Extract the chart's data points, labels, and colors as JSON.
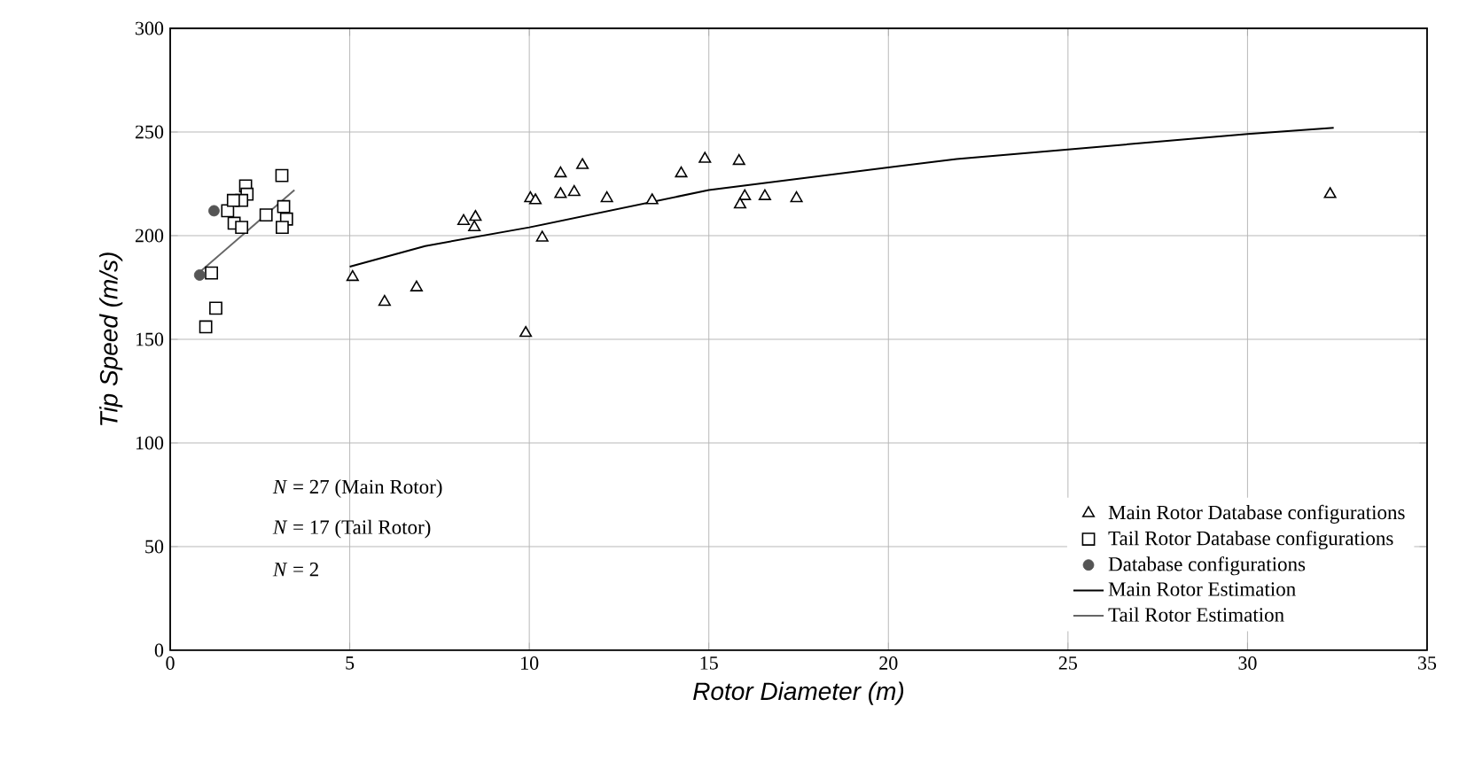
{
  "chart_data": {
    "type": "scatter",
    "xlabel": "Rotor Diameter (m)",
    "ylabel": "Tip Speed (m/s)",
    "xlim": [
      0,
      35
    ],
    "ylim": [
      0,
      300
    ],
    "xticks": [
      0,
      5,
      10,
      15,
      20,
      25,
      30,
      35
    ],
    "yticks": [
      0,
      50,
      100,
      150,
      200,
      250,
      300
    ],
    "grid": true,
    "legend": "bottom right",
    "annotations": [
      "*N* = 27 (Main Rotor)",
      "*N* = 17 (Tail Rotor)",
      "*N* = 2"
    ],
    "series": [
      {
        "name": "Main Rotor Database configurations",
        "marker": "triangle",
        "color": "#000000",
        "x": [
          5.08,
          5.97,
          6.86,
          8.17,
          8.5,
          8.47,
          10.03,
          10.17,
          10.36,
          9.9,
          10.87,
          11.48,
          10.87,
          11.25,
          12.16,
          13.42,
          14.23,
          14.89,
          15.84,
          16.0,
          15.87,
          16.56,
          17.44,
          32.3
        ],
        "values": [
          180,
          168,
          175,
          207,
          209,
          204,
          218,
          217,
          199,
          153,
          230,
          234,
          220,
          221,
          218,
          217,
          230,
          237,
          236,
          219,
          215,
          219,
          218,
          220
        ]
      },
      {
        "name": "Tail Rotor Database configurations",
        "marker": "square",
        "color": "#000000",
        "x": [
          0.99,
          1.27,
          1.15,
          1.6,
          1.78,
          1.99,
          2.1,
          2.14,
          1.99,
          2.67,
          3.11,
          3.16,
          3.24,
          3.12,
          1.76
        ],
        "values": [
          156,
          165,
          182,
          212,
          206,
          204,
          224,
          220,
          217,
          210,
          229,
          214,
          208,
          204,
          217
        ]
      },
      {
        "name": "Database configurations",
        "marker": "circle",
        "color": "#555555",
        "x": [
          0.82,
          1.22
        ],
        "values": [
          181,
          212
        ]
      },
      {
        "name": "Main Rotor Estimation",
        "type": "line",
        "marker": "none",
        "line_style": "solid",
        "color": "#000000",
        "x": [
          5,
          7.1,
          10,
          15,
          21.9,
          30,
          32.4
        ],
        "values": [
          185,
          195,
          204,
          222,
          237,
          249,
          252
        ]
      },
      {
        "name": "Tail Rotor Estimation",
        "type": "line",
        "marker": "none",
        "line_style": "solid",
        "color": "#666666",
        "x": [
          0.86,
          3.46
        ],
        "values": [
          183,
          222
        ]
      }
    ]
  }
}
